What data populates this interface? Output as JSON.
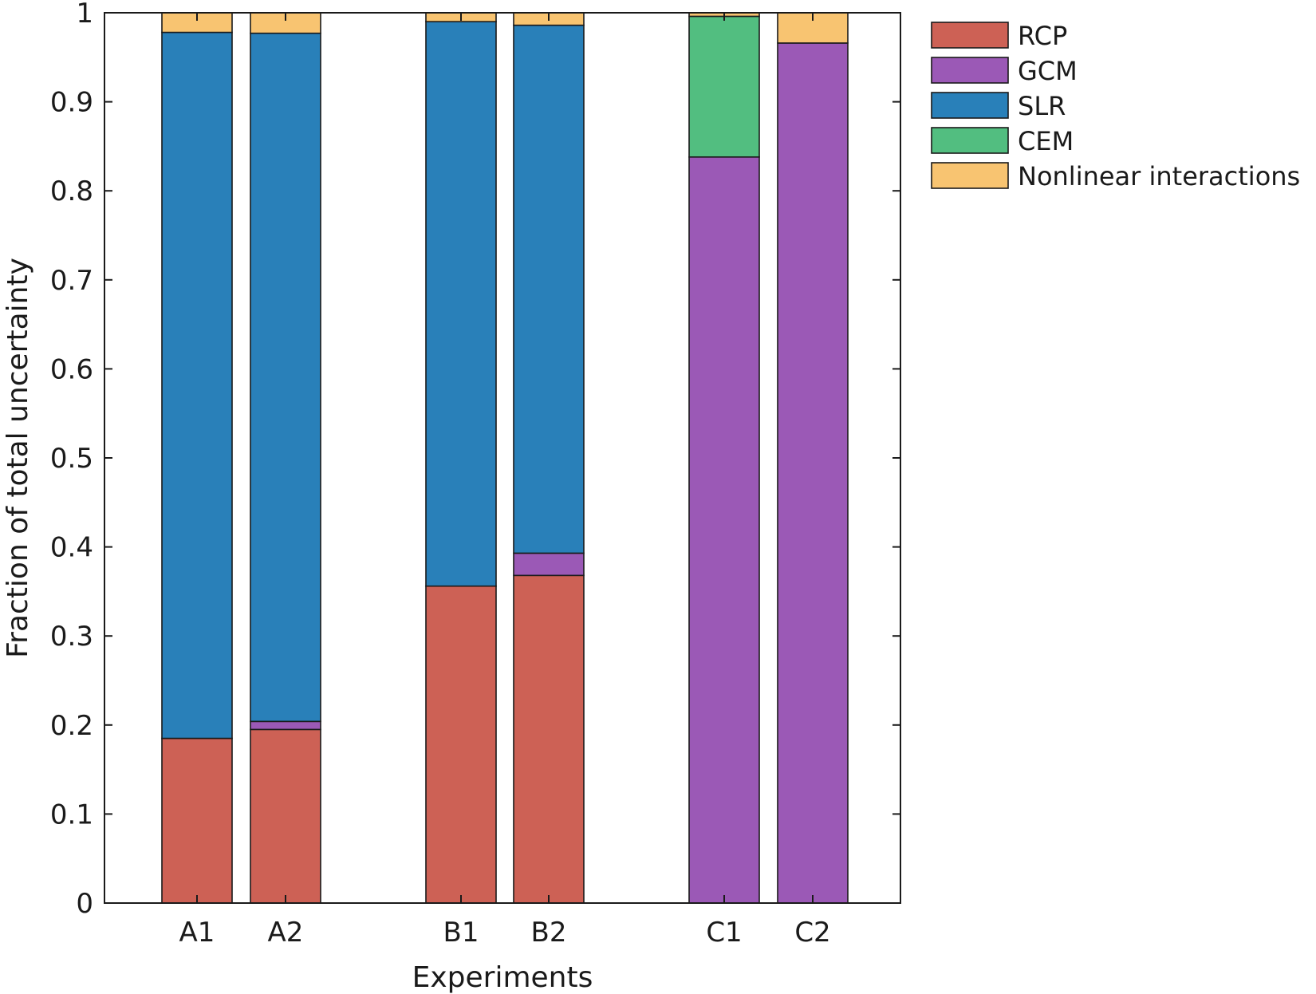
{
  "chart_data": {
    "type": "stacked-bar",
    "xlabel": "Experiments",
    "ylabel": "Fraction of total uncertainty",
    "ylim": [
      0,
      1
    ],
    "yticks": [
      0,
      0.1,
      0.2,
      0.3,
      0.4,
      0.5,
      0.6,
      0.7,
      0.8,
      0.9,
      1
    ],
    "ytick_labels": [
      "0",
      "0.1",
      "0.2",
      "0.3",
      "0.4",
      "0.5",
      "0.6",
      "0.7",
      "0.8",
      "0.9",
      "1"
    ],
    "categories": [
      "A1",
      "A2",
      "B1",
      "B2",
      "C1",
      "C2"
    ],
    "series": [
      {
        "name": "RCP",
        "color": "#cd6155",
        "values": [
          0.185,
          0.195,
          0.356,
          0.368,
          0,
          0
        ]
      },
      {
        "name": "GCM",
        "color": "#9b59b6",
        "values": [
          0,
          0.009,
          0,
          0.025,
          0.838,
          0.966
        ]
      },
      {
        "name": "SLR",
        "color": "#2980b9",
        "values": [
          0.793,
          0.773,
          0.634,
          0.593,
          0,
          0
        ]
      },
      {
        "name": "CEM",
        "color": "#52be80",
        "values": [
          0,
          0,
          0,
          0,
          0.158,
          0
        ]
      },
      {
        "name": "Nonlinear interactions",
        "color": "#f8c471",
        "values": [
          0.022,
          0.023,
          0.01,
          0.014,
          0.004,
          0.034
        ]
      }
    ],
    "legend_position": "outside-top-right",
    "grid": false,
    "box": true
  }
}
